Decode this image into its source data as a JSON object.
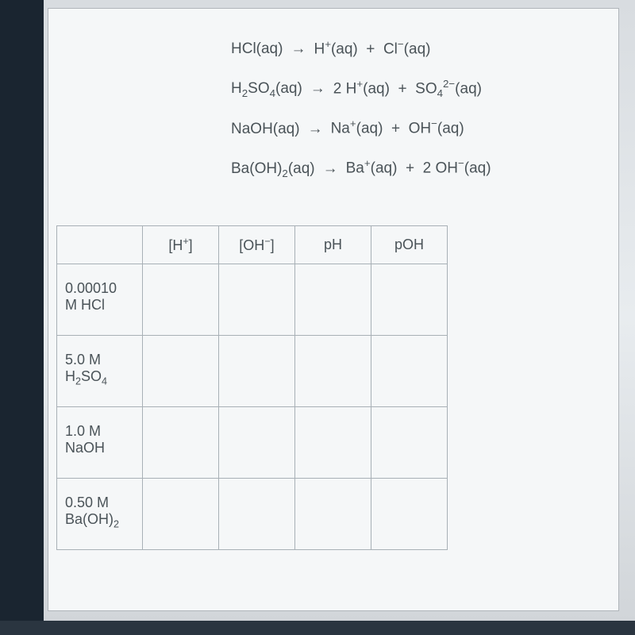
{
  "equations": [
    {
      "reactant": "HCl(aq)",
      "products": "H⁺(aq)  +  Cl⁻(aq)"
    },
    {
      "reactant": "H₂SO₄(aq)",
      "products": "2 H⁺(aq)  +  SO₄²⁻(aq)"
    },
    {
      "reactant": "NaOH(aq)",
      "products": "Na⁺(aq)  +  OH⁻(aq)"
    },
    {
      "reactant": "Ba(OH)₂(aq)",
      "products": "Ba⁺(aq)  +  2 OH⁻(aq)"
    }
  ],
  "table": {
    "headers": {
      "blank": "",
      "h": "[H⁺]",
      "oh": "[OH⁻]",
      "ph": "pH",
      "poh": "pOH"
    },
    "rows": [
      {
        "label_line1": "0.00010",
        "label_line2": "M HCl"
      },
      {
        "label_line1": "5.0 M",
        "label_line2": "H₂SO₄"
      },
      {
        "label_line1": "1.0 M",
        "label_line2": "NaOH"
      },
      {
        "label_line1": "0.50 M",
        "label_line2": "Ba(OH)₂"
      }
    ]
  },
  "styling": {
    "background_gradient_top": "#d8dce0",
    "background_gradient_mid": "#e8ecef",
    "background_gradient_bottom": "#d0d4d8",
    "content_bg": "#f5f7f8",
    "border_color": "#a8b0b6",
    "text_color": "#4a5358",
    "equation_fontsize": 19,
    "table_fontsize": 18,
    "taskbar_color": "#2a3540",
    "arrow_symbol": "→"
  }
}
